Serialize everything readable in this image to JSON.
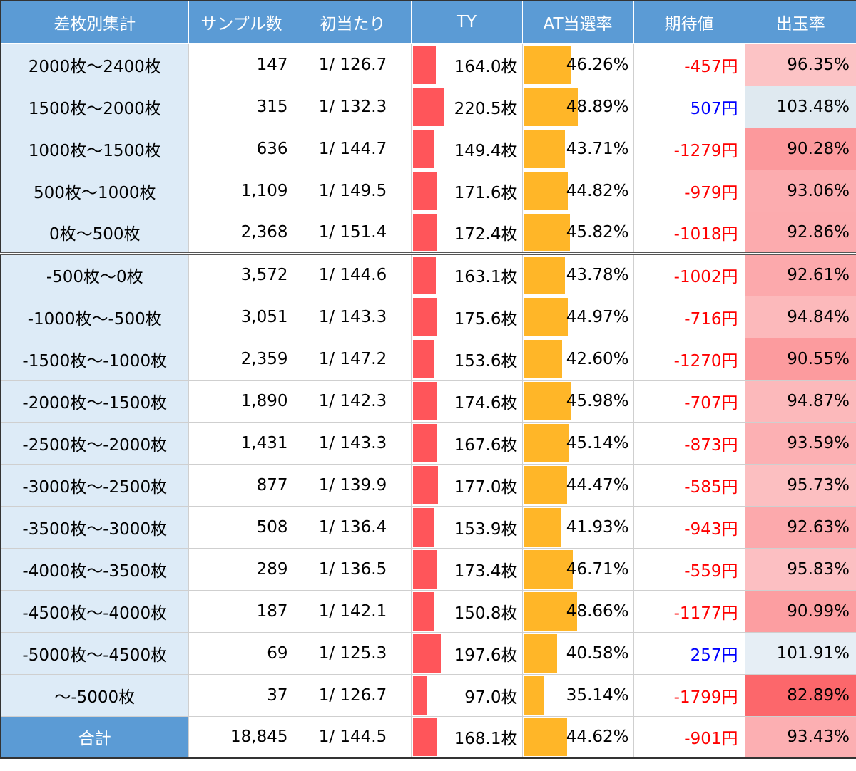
{
  "headers": [
    "差枚別集計",
    "サンプル数",
    "初当たり",
    "TY",
    "AT当選率",
    "期待値",
    "出玉率"
  ],
  "colors": {
    "header_bg": "#5b9bd5",
    "label_bg": "#ddebf7",
    "ty_bar": "#ff555a",
    "at_bar": "#ffb628",
    "negative_text": "#ff0000",
    "positive_text": "#0000ff"
  },
  "rows": [
    {
      "label": "2000枚～2400枚",
      "samples": "147",
      "hit": "1/ 126.7",
      "ty": "164.0枚",
      "ty_value": 164.0,
      "at": "46.26%",
      "at_value": 46.26,
      "ev": "-457円",
      "ev_value": -457,
      "payout": "96.35%",
      "payout_value": 96.35
    },
    {
      "label": "1500枚～2000枚",
      "samples": "315",
      "hit": "1/ 132.3",
      "ty": "220.5枚",
      "ty_value": 220.5,
      "at": "48.89%",
      "at_value": 48.89,
      "ev": "507円",
      "ev_value": 507,
      "payout": "103.48%",
      "payout_value": 103.48
    },
    {
      "label": "1000枚～1500枚",
      "samples": "636",
      "hit": "1/ 144.7",
      "ty": "149.4枚",
      "ty_value": 149.4,
      "at": "43.71%",
      "at_value": 43.71,
      "ev": "-1279円",
      "ev_value": -1279,
      "payout": "90.28%",
      "payout_value": 90.28
    },
    {
      "label": "500枚～1000枚",
      "samples": "1,109",
      "hit": "1/ 149.5",
      "ty": "171.6枚",
      "ty_value": 171.6,
      "at": "44.82%",
      "at_value": 44.82,
      "ev": "-979円",
      "ev_value": -979,
      "payout": "93.06%",
      "payout_value": 93.06
    },
    {
      "label": "0枚～500枚",
      "samples": "2,368",
      "hit": "1/ 151.4",
      "ty": "172.4枚",
      "ty_value": 172.4,
      "at": "45.82%",
      "at_value": 45.82,
      "ev": "-1018円",
      "ev_value": -1018,
      "payout": "92.86%",
      "payout_value": 92.86
    },
    {
      "label": "-500枚～0枚",
      "samples": "3,572",
      "hit": "1/ 144.6",
      "ty": "163.1枚",
      "ty_value": 163.1,
      "at": "43.78%",
      "at_value": 43.78,
      "ev": "-1002円",
      "ev_value": -1002,
      "payout": "92.61%",
      "payout_value": 92.61
    },
    {
      "label": "-1000枚～-500枚",
      "samples": "3,051",
      "hit": "1/ 143.3",
      "ty": "175.6枚",
      "ty_value": 175.6,
      "at": "44.97%",
      "at_value": 44.97,
      "ev": "-716円",
      "ev_value": -716,
      "payout": "94.84%",
      "payout_value": 94.84
    },
    {
      "label": "-1500枚～-1000枚",
      "samples": "2,359",
      "hit": "1/ 147.2",
      "ty": "153.6枚",
      "ty_value": 153.6,
      "at": "42.60%",
      "at_value": 42.6,
      "ev": "-1270円",
      "ev_value": -1270,
      "payout": "90.55%",
      "payout_value": 90.55
    },
    {
      "label": "-2000枚～-1500枚",
      "samples": "1,890",
      "hit": "1/ 142.3",
      "ty": "174.6枚",
      "ty_value": 174.6,
      "at": "45.98%",
      "at_value": 45.98,
      "ev": "-707円",
      "ev_value": -707,
      "payout": "94.87%",
      "payout_value": 94.87
    },
    {
      "label": "-2500枚～-2000枚",
      "samples": "1,431",
      "hit": "1/ 143.3",
      "ty": "167.6枚",
      "ty_value": 167.6,
      "at": "45.14%",
      "at_value": 45.14,
      "ev": "-873円",
      "ev_value": -873,
      "payout": "93.59%",
      "payout_value": 93.59
    },
    {
      "label": "-3000枚～-2500枚",
      "samples": "877",
      "hit": "1/ 139.9",
      "ty": "177.0枚",
      "ty_value": 177.0,
      "at": "44.47%",
      "at_value": 44.47,
      "ev": "-585円",
      "ev_value": -585,
      "payout": "95.73%",
      "payout_value": 95.73
    },
    {
      "label": "-3500枚～-3000枚",
      "samples": "508",
      "hit": "1/ 136.4",
      "ty": "153.9枚",
      "ty_value": 153.9,
      "at": "41.93%",
      "at_value": 41.93,
      "ev": "-943円",
      "ev_value": -943,
      "payout": "92.63%",
      "payout_value": 92.63
    },
    {
      "label": "-4000枚～-3500枚",
      "samples": "289",
      "hit": "1/ 136.5",
      "ty": "173.4枚",
      "ty_value": 173.4,
      "at": "46.71%",
      "at_value": 46.71,
      "ev": "-559円",
      "ev_value": -559,
      "payout": "95.83%",
      "payout_value": 95.83
    },
    {
      "label": "-4500枚～-4000枚",
      "samples": "187",
      "hit": "1/ 142.1",
      "ty": "150.8枚",
      "ty_value": 150.8,
      "at": "48.66%",
      "at_value": 48.66,
      "ev": "-1177円",
      "ev_value": -1177,
      "payout": "90.99%",
      "payout_value": 90.99
    },
    {
      "label": "-5000枚～-4500枚",
      "samples": "69",
      "hit": "1/ 125.3",
      "ty": "197.6枚",
      "ty_value": 197.6,
      "at": "40.58%",
      "at_value": 40.58,
      "ev": "257円",
      "ev_value": 257,
      "payout": "101.91%",
      "payout_value": 101.91
    },
    {
      "label": "～-5000枚",
      "samples": "37",
      "hit": "1/ 126.7",
      "ty": "97.0枚",
      "ty_value": 97.0,
      "at": "35.14%",
      "at_value": 35.14,
      "ev": "-1799円",
      "ev_value": -1799,
      "payout": "82.89%",
      "payout_value": 82.89
    }
  ],
  "total": {
    "label": "合計",
    "samples": "18,845",
    "hit": "1/ 144.5",
    "ty": "168.1枚",
    "ty_value": 168.1,
    "at": "44.62%",
    "at_value": 44.62,
    "ev": "-901円",
    "ev_value": -901,
    "payout": "93.43%",
    "payout_value": 93.43
  }
}
